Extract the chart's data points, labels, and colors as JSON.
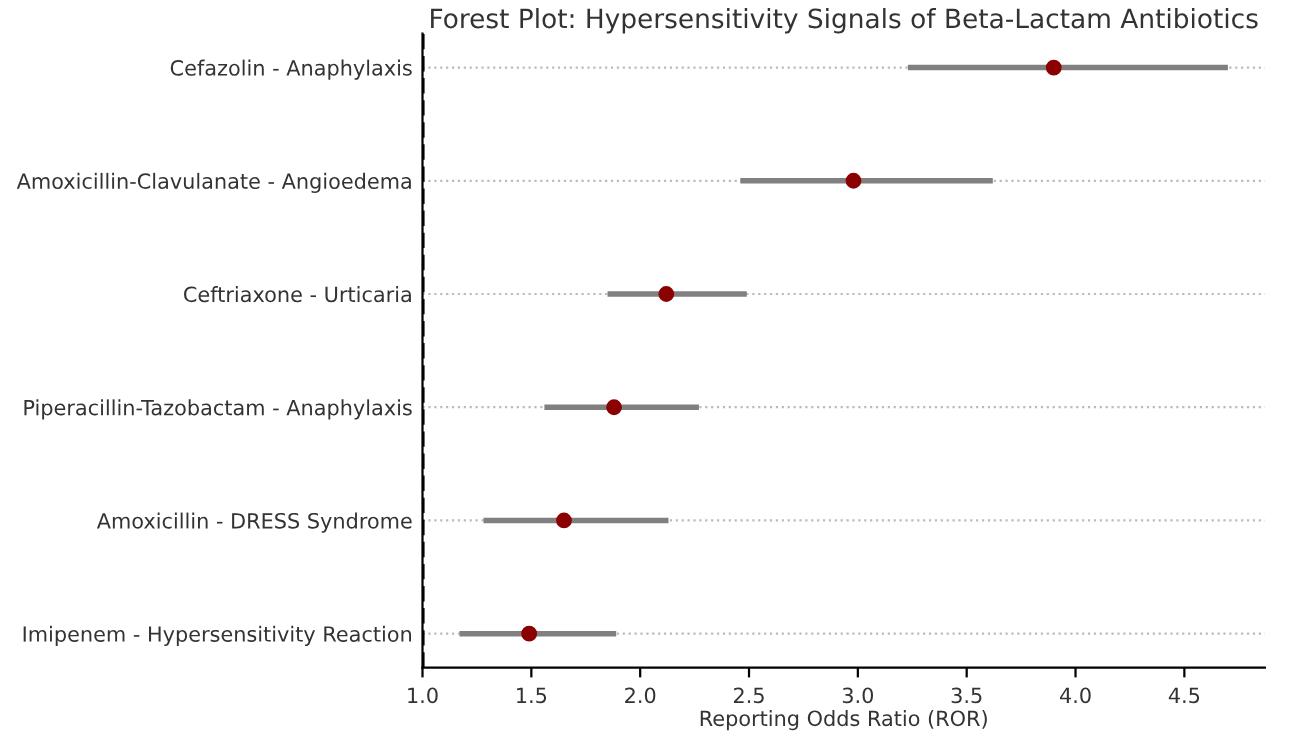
{
  "chart_data": {
    "type": "scatter",
    "title": "Forest Plot: Hypersensitivity Signals of Beta-Lactam Antibiotics",
    "xlabel": "Reporting Odds Ratio (ROR)",
    "orientation": "horizontal",
    "categories": [
      "Cefazolin - Anaphylaxis",
      "Amoxicillin-Clavulanate - Angioedema",
      "Ceftriaxone - Urticaria",
      "Piperacillin-Tazobactam - Anaphylaxis",
      "Amoxicillin - DRESS Syndrome",
      "Imipenem - Hypersensitivity Reaction"
    ],
    "series": [
      {
        "color": "#8b0000",
        "values": [
          3.9,
          2.98,
          2.12,
          1.88,
          1.65,
          1.49
        ],
        "errors": [
          [
            3.23,
            4.7
          ],
          [
            2.46,
            3.62
          ],
          [
            1.85,
            2.49
          ],
          [
            1.56,
            2.27
          ],
          [
            1.28,
            2.13
          ],
          [
            1.17,
            1.89
          ]
        ]
      }
    ],
    "xlim": [
      1.0,
      4.87
    ],
    "xticks": [
      {
        "value": 1,
        "label": "1.0"
      },
      1.5,
      {
        "value": 2,
        "label": "2.0"
      },
      2.5,
      {
        "value": 3,
        "label": "3.0"
      },
      3.5,
      {
        "value": 4,
        "label": "4.0"
      },
      4.5
    ],
    "ref_lines": [
      {
        "axis": "x",
        "value": 1.0,
        "label": null,
        "color": "#000000",
        "line_style": "dashed"
      }
    ],
    "grid": "y",
    "marker": "circle",
    "legend": false
  }
}
